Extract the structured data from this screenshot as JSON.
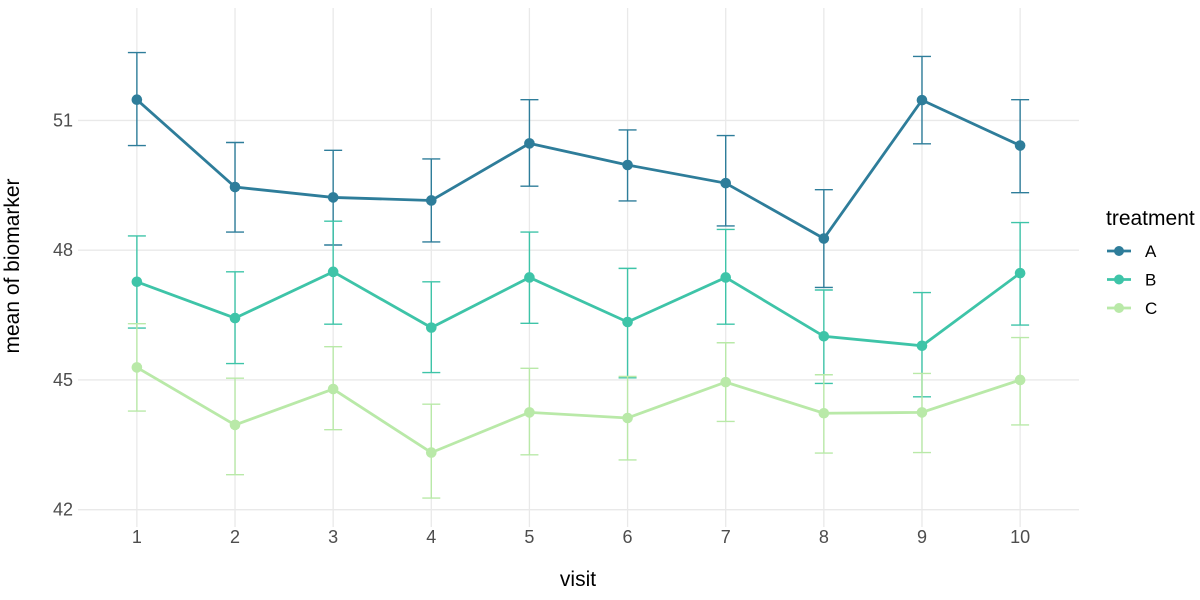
{
  "chart_data": {
    "type": "line",
    "title": "",
    "xlabel": "visit",
    "ylabel": "mean of biomarker",
    "legend_title": "treatment",
    "legend_position": "right",
    "grid": true,
    "error_bars": true,
    "x": [
      1,
      2,
      3,
      4,
      5,
      6,
      7,
      8,
      9,
      10
    ],
    "x_ticks": [
      "1",
      "2",
      "3",
      "4",
      "5",
      "6",
      "7",
      "8",
      "9",
      "10"
    ],
    "y_ticks": [
      42,
      45,
      48,
      51
    ],
    "xlim": [
      0.4,
      10.6
    ],
    "ylim": [
      41.6,
      53.6
    ],
    "series": [
      {
        "name": "A",
        "color": "#2e7d9a",
        "values": [
          51.48,
          49.46,
          49.22,
          49.15,
          50.47,
          49.97,
          49.55,
          48.27,
          51.47,
          50.42
        ],
        "upper": [
          52.57,
          50.49,
          50.31,
          50.11,
          51.48,
          50.78,
          50.65,
          49.4,
          52.48,
          51.48
        ],
        "lower": [
          50.42,
          48.42,
          48.12,
          48.19,
          49.48,
          49.14,
          48.56,
          47.14,
          50.46,
          49.33
        ]
      },
      {
        "name": "B",
        "color": "#3ec4a8",
        "values": [
          47.27,
          46.43,
          47.5,
          46.21,
          47.37,
          46.34,
          47.37,
          46.01,
          45.79,
          47.47
        ],
        "upper": [
          48.33,
          47.5,
          48.67,
          47.27,
          48.42,
          47.58,
          48.48,
          47.08,
          47.02,
          48.64
        ],
        "lower": [
          46.2,
          45.38,
          46.29,
          45.17,
          46.31,
          45.05,
          46.29,
          44.92,
          44.61,
          46.27
        ]
      },
      {
        "name": "C",
        "color": "#b9e9a8",
        "values": [
          45.29,
          43.96,
          44.79,
          43.32,
          44.25,
          44.12,
          44.95,
          44.23,
          44.25,
          45.0
        ],
        "upper": [
          46.3,
          45.04,
          45.77,
          44.44,
          45.27,
          45.08,
          45.86,
          45.12,
          45.15,
          45.98
        ],
        "lower": [
          44.28,
          42.81,
          43.85,
          42.27,
          43.27,
          43.15,
          44.04,
          43.31,
          43.32,
          43.96
        ]
      }
    ],
    "style": {
      "background": "#ffffff",
      "grid_color": "#e9e9e9",
      "tick_label_color": "#4d4d4d",
      "axis_title_color": "#000000"
    }
  }
}
